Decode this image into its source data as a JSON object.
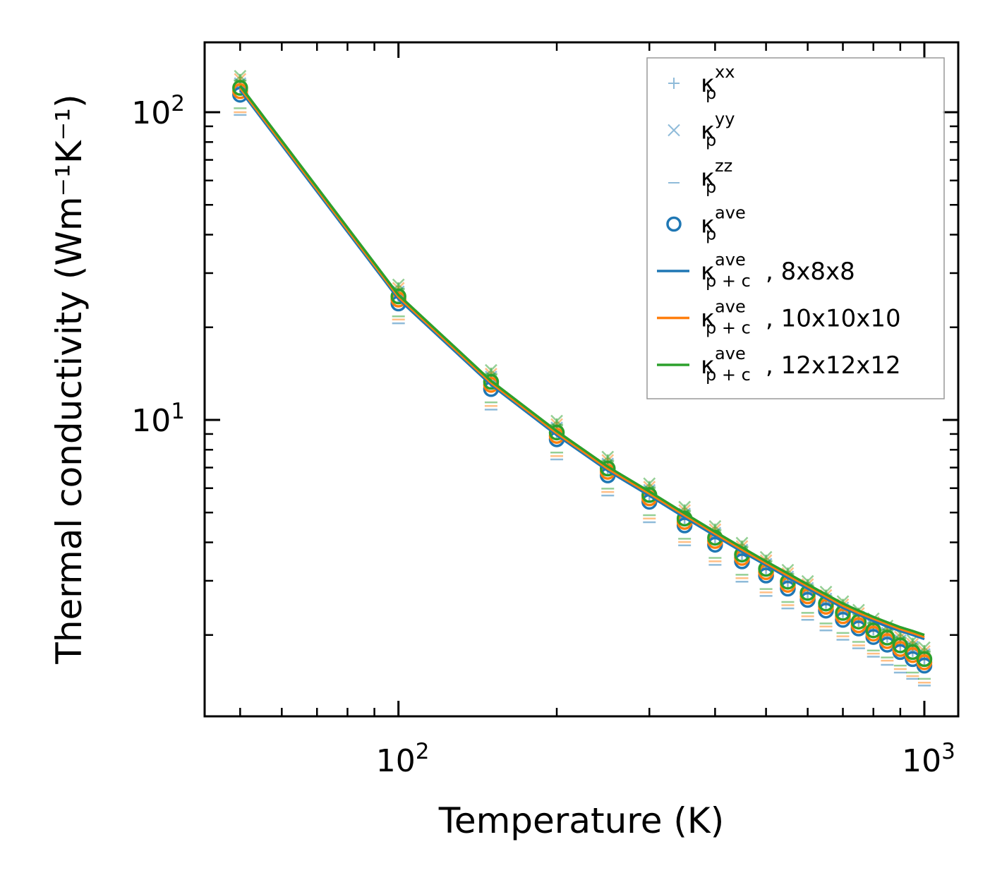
{
  "chart_data": {
    "type": "scatter",
    "title": "",
    "xlabel": "Temperature (K)",
    "ylabel": "Thermal conductivity (Wm⁻¹K⁻¹)",
    "xscale": "log",
    "yscale": "log",
    "xlim": [
      42.8,
      1160
    ],
    "ylim": [
      1.088,
      168.7
    ],
    "x_ticks": [
      {
        "value": 100,
        "base": "10",
        "exp": "2"
      },
      {
        "value": 1000,
        "base": "10",
        "exp": "3"
      }
    ],
    "y_ticks": [
      {
        "value": 10,
        "base": "10",
        "exp": "1"
      },
      {
        "value": 100,
        "base": "10",
        "exp": "2"
      }
    ],
    "grid": false,
    "legend_position": "top-right",
    "legend": [
      {
        "marker": "plus",
        "color": "#1f77b4",
        "base": "κ",
        "sub": "p",
        "sup": "xx",
        "suffix": ""
      },
      {
        "marker": "cross",
        "color": "#1f77b4",
        "base": "κ",
        "sub": "p",
        "sup": "yy",
        "suffix": ""
      },
      {
        "marker": "hline",
        "color": "#1f77b4",
        "base": "κ",
        "sub": "p",
        "sup": "zz",
        "suffix": ""
      },
      {
        "marker": "circle",
        "color": "#1f77b4",
        "base": "κ",
        "sub": "p",
        "sup": "ave",
        "suffix": ""
      },
      {
        "marker": "line",
        "color": "#1f77b4",
        "base": "κ",
        "sub": "p + c",
        "sup": "ave",
        "suffix": ", 8x8x8"
      },
      {
        "marker": "line",
        "color": "#ff7f0e",
        "base": "κ",
        "sub": "p + c",
        "sup": "ave",
        "suffix": ", 10x10x10"
      },
      {
        "marker": "line",
        "color": "#2ca02c",
        "base": "κ",
        "sub": "p + c",
        "sup": "ave",
        "suffix": ", 12x12x12"
      }
    ],
    "x": [
      50,
      100,
      150,
      200,
      250,
      300,
      350,
      400,
      450,
      500,
      550,
      600,
      650,
      700,
      750,
      800,
      850,
      900,
      950,
      1000
    ],
    "series": [
      {
        "name": "8x8x8",
        "color": "#1f77b4",
        "xx": [
          121,
          25.4,
          13.4,
          9.17,
          7.0,
          5.74,
          4.82,
          4.17,
          3.68,
          3.31,
          3.0,
          2.76,
          2.55,
          2.38,
          2.23,
          2.09,
          1.98,
          1.86,
          1.78,
          1.68
        ],
        "yy": [
          124,
          26.1,
          13.8,
          9.43,
          7.2,
          5.91,
          4.95,
          4.29,
          3.78,
          3.4,
          3.09,
          2.84,
          2.62,
          2.45,
          2.29,
          2.15,
          2.03,
          1.92,
          1.83,
          1.73
        ],
        "zz": [
          98,
          20.6,
          10.8,
          7.44,
          5.68,
          4.65,
          3.91,
          3.38,
          2.98,
          2.68,
          2.44,
          2.24,
          2.07,
          1.93,
          1.81,
          1.7,
          1.6,
          1.51,
          1.44,
          1.37
        ],
        "ave": [
          114,
          23.9,
          12.6,
          8.65,
          6.6,
          5.42,
          4.54,
          3.93,
          3.47,
          3.12,
          2.83,
          2.6,
          2.4,
          2.24,
          2.1,
          1.97,
          1.86,
          1.76,
          1.67,
          1.59
        ],
        "p_plus_c": [
          118,
          24.7,
          13.0,
          8.92,
          6.84,
          5.67,
          4.82,
          4.2,
          3.73,
          3.37,
          3.07,
          2.83,
          2.63,
          2.45,
          2.33,
          2.22,
          2.13,
          2.06,
          2.0,
          1.94
        ]
      },
      {
        "name": "10x10x10",
        "color": "#ff7f0e",
        "xx": [
          124,
          26.0,
          13.7,
          9.41,
          7.19,
          5.89,
          4.94,
          4.28,
          3.77,
          3.39,
          3.08,
          2.83,
          2.61,
          2.44,
          2.28,
          2.14,
          2.03,
          1.91,
          1.82,
          1.73
        ],
        "yy": [
          128,
          26.8,
          14.1,
          9.67,
          7.39,
          6.05,
          5.08,
          4.4,
          3.88,
          3.49,
          3.17,
          2.92,
          2.69,
          2.51,
          2.35,
          2.2,
          2.09,
          1.97,
          1.87,
          1.77
        ],
        "zz": [
          100,
          21.2,
          11.1,
          7.63,
          5.83,
          4.78,
          4.01,
          3.47,
          3.06,
          2.75,
          2.5,
          2.3,
          2.13,
          1.98,
          1.85,
          1.74,
          1.65,
          1.55,
          1.47,
          1.4
        ],
        "ave": [
          117,
          24.6,
          13.0,
          8.87,
          6.78,
          5.56,
          4.66,
          4.04,
          3.56,
          3.2,
          2.91,
          2.67,
          2.47,
          2.3,
          2.15,
          2.02,
          1.91,
          1.8,
          1.72,
          1.63
        ],
        "p_plus_c": [
          120,
          25.1,
          13.2,
          9.06,
          6.94,
          5.76,
          4.9,
          4.27,
          3.79,
          3.42,
          3.12,
          2.88,
          2.67,
          2.49,
          2.36,
          2.26,
          2.17,
          2.09,
          2.03,
          1.97
        ]
      },
      {
        "name": "12x12x12",
        "color": "#2ca02c",
        "xx": [
          127,
          26.7,
          14.1,
          9.65,
          7.37,
          6.04,
          5.07,
          4.39,
          3.87,
          3.48,
          3.16,
          2.9,
          2.68,
          2.5,
          2.34,
          2.19,
          2.08,
          1.96,
          1.87,
          1.77
        ],
        "yy": [
          131,
          27.5,
          14.5,
          9.92,
          7.58,
          6.21,
          5.21,
          4.51,
          3.98,
          3.58,
          3.25,
          2.99,
          2.76,
          2.57,
          2.41,
          2.26,
          2.14,
          2.02,
          1.92,
          1.82
        ],
        "zz": [
          103,
          21.7,
          11.4,
          7.83,
          5.98,
          4.9,
          4.11,
          3.56,
          3.14,
          2.82,
          2.56,
          2.36,
          2.18,
          2.03,
          1.9,
          1.78,
          1.69,
          1.59,
          1.51,
          1.44
        ],
        "ave": [
          120,
          25.2,
          13.3,
          9.1,
          6.95,
          5.7,
          4.78,
          4.14,
          3.65,
          3.28,
          2.98,
          2.74,
          2.53,
          2.36,
          2.21,
          2.07,
          1.96,
          1.85,
          1.76,
          1.67
        ],
        "p_plus_c": [
          122,
          25.5,
          13.4,
          9.2,
          7.05,
          5.85,
          4.97,
          4.33,
          3.85,
          3.47,
          3.17,
          2.92,
          2.71,
          2.53,
          2.4,
          2.29,
          2.2,
          2.12,
          2.06,
          2.0
        ]
      }
    ]
  }
}
